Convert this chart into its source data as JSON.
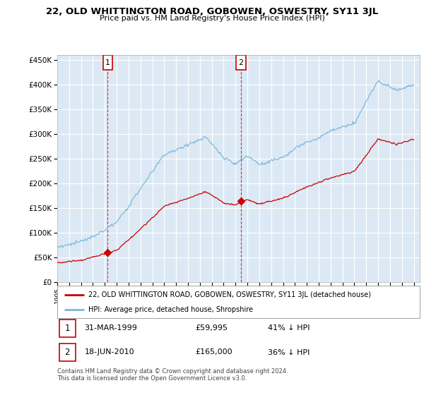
{
  "title": "22, OLD WHITTINGTON ROAD, GOBOWEN, OSWESTRY, SY11 3JL",
  "subtitle": "Price paid vs. HM Land Registry's House Price Index (HPI)",
  "hpi_label": "HPI: Average price, detached house, Shropshire",
  "property_label": "22, OLD WHITTINGTON ROAD, GOBOWEN, OSWESTRY, SY11 3JL (detached house)",
  "hpi_color": "#7ab6d9",
  "property_color": "#cc0000",
  "sale1": {
    "date": "31-MAR-1999",
    "price": 59995,
    "year": 1999.25,
    "label": "1"
  },
  "sale2": {
    "date": "18-JUN-2010",
    "price": 165000,
    "year": 2010.46,
    "label": "2"
  },
  "ylim": [
    0,
    460000
  ],
  "xlim_start": 1995.0,
  "xlim_end": 2025.5,
  "footer": "Contains HM Land Registry data © Crown copyright and database right 2024.\nThis data is licensed under the Open Government Licence v3.0.",
  "yticks": [
    0,
    50000,
    100000,
    150000,
    200000,
    250000,
    300000,
    350000,
    400000,
    450000
  ],
  "xtick_years": [
    1995,
    1996,
    1997,
    1998,
    1999,
    2000,
    2001,
    2002,
    2003,
    2004,
    2005,
    2006,
    2007,
    2008,
    2009,
    2010,
    2011,
    2012,
    2013,
    2014,
    2015,
    2016,
    2017,
    2018,
    2019,
    2020,
    2021,
    2022,
    2023,
    2024,
    2025
  ],
  "background_color": "#ffffff",
  "plot_bg_color": "#dce9f5",
  "grid_color": "#ffffff",
  "sale_row1": {
    "num": "1",
    "date": "31-MAR-1999",
    "price": "£59,995",
    "pct": "41% ↓ HPI"
  },
  "sale_row2": {
    "num": "2",
    "date": "18-JUN-2010",
    "price": "£165,000",
    "pct": "36% ↓ HPI"
  }
}
